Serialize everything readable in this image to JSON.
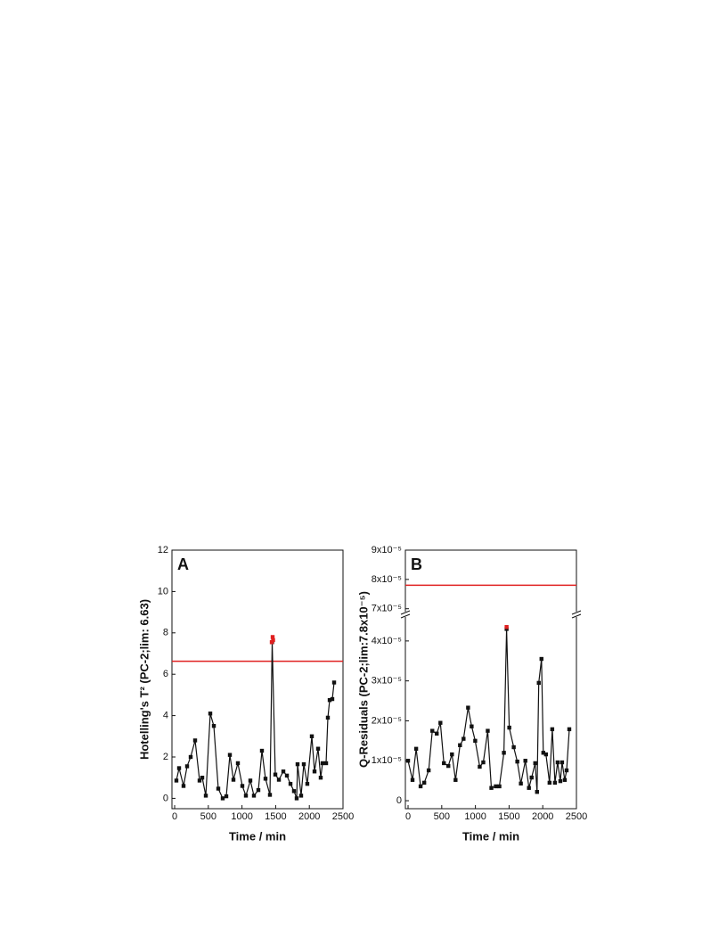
{
  "chart_data": [
    {
      "type": "line",
      "panel": "A",
      "ylabel": "Hotelling's T² (PC-2;lim: 6.63)",
      "xlabel": "Time / min",
      "xlim": [
        -40,
        2500
      ],
      "xticks": [
        0,
        500,
        1000,
        1500,
        2000,
        2500
      ],
      "ylim": [
        -0.5,
        12
      ],
      "yticks": [
        0,
        2,
        4,
        6,
        8,
        10,
        12
      ],
      "limit": 6.63,
      "limit_color": "#e02020",
      "series": [
        {
          "color": "#111111",
          "x": [
            26,
            66,
            132,
            185,
            238,
            304,
            370,
            410,
            463,
            529,
            582,
            648,
            714,
            767,
            820,
            873,
            939,
            1005,
            1058,
            1124,
            1177,
            1243,
            1296,
            1349,
            1415,
            1448,
            1495,
            1548,
            1614,
            1667,
            1720,
            1772,
            1812,
            1825,
            1878,
            1918,
            1970,
            2037,
            2077,
            2130,
            2169,
            2196,
            2249,
            2275,
            2302,
            2341,
            2368
          ],
          "values": [
            0.86,
            1.46,
            0.6,
            1.55,
            2.0,
            2.8,
            0.86,
            1.0,
            0.13,
            4.1,
            3.5,
            0.47,
            0.0,
            0.1,
            2.1,
            0.9,
            1.7,
            0.6,
            0.13,
            0.86,
            0.13,
            0.4,
            2.3,
            0.95,
            0.17,
            7.55,
            1.15,
            0.9,
            1.3,
            1.1,
            0.7,
            0.35,
            0.0,
            1.65,
            0.13,
            1.65,
            0.7,
            3.0,
            1.3,
            2.4,
            1.0,
            1.7,
            1.7,
            3.9,
            4.75,
            4.8,
            5.6
          ]
        },
        {
          "color": "#e02020",
          "x": [
            1442,
            1455,
            1462
          ],
          "values": [
            7.55,
            7.8,
            7.65
          ]
        }
      ]
    },
    {
      "type": "line",
      "panel": "B",
      "ylabel": "Q-Residuals (PC-2;lim:7.8x10⁻⁵)",
      "xlabel": "Time / min",
      "xlim": [
        -40,
        2500
      ],
      "xticks": [
        0,
        500,
        1000,
        1500,
        2000,
        2500
      ],
      "ylim": [
        -2e-06,
        9e-05
      ],
      "ybreak": [
        4.6e-05,
        6.9e-05
      ],
      "yticks": [
        0,
        {
          "value": 1e-05,
          "label": "1x10⁻⁵"
        },
        {
          "value": 2e-05,
          "label": "2x10⁻⁵"
        },
        {
          "value": 3e-05,
          "label": "3x10⁻⁵"
        },
        {
          "value": 4e-05,
          "label": "4x10⁻⁵"
        },
        {
          "value": 7e-05,
          "label": "7x10⁻⁵"
        },
        {
          "value": 8e-05,
          "label": "8x10⁻⁵"
        },
        {
          "value": 9e-05,
          "label": "9x10⁻⁵"
        }
      ],
      "limit": 7.8e-05,
      "limit_color": "#e02020",
      "series": [
        {
          "color": "#111111",
          "x": [
            0,
            66,
            120,
            186,
            240,
            306,
            360,
            426,
            480,
            532,
            598,
            652,
            705,
            771,
            824,
            891,
            944,
            997,
            1064,
            1117,
            1183,
            1237,
            1303,
            1356,
            1423,
            1463,
            1503,
            1569,
            1622,
            1675,
            1742,
            1795,
            1835,
            1888,
            1915,
            1941,
            1981,
            2008,
            2048,
            2101,
            2141,
            2181,
            2221,
            2261,
            2287,
            2327,
            2354,
            2394
          ],
          "values": [
            1e-05,
            5.2e-06,
            1.3e-05,
            3.6e-06,
            4.5e-06,
            7.6e-06,
            1.75e-05,
            1.68e-05,
            1.95e-05,
            9.4e-06,
            8.7e-06,
            1.16e-05,
            5.2e-06,
            1.39e-05,
            1.55e-05,
            2.33e-05,
            1.86e-05,
            1.5e-05,
            8.5e-06,
            9.6e-06,
            1.75e-05,
            3.2e-06,
            3.6e-06,
            3.6e-06,
            1.2e-05,
            4.3e-05,
            1.83e-05,
            1.34e-05,
            9.8e-06,
            4.3e-06,
            1e-05,
            3.2e-06,
            5.8e-06,
            9.4e-06,
            2.2e-06,
            2.95e-05,
            3.55e-05,
            1.2e-05,
            1.16e-05,
            4.5e-06,
            1.79e-05,
            4.5e-06,
            9.6e-06,
            4.9e-06,
            9.6e-06,
            5.2e-06,
            7.6e-06,
            1.79e-05
          ]
        },
        {
          "color": "#e02020",
          "x": [
            1463
          ],
          "values": [
            4.35e-05
          ]
        }
      ]
    }
  ]
}
